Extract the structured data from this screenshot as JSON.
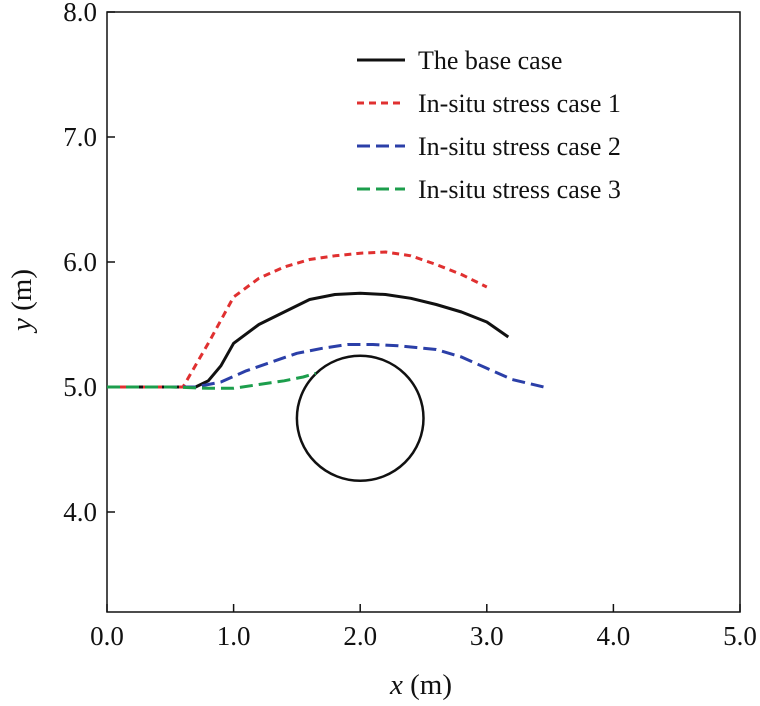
{
  "chart_data": {
    "type": "line",
    "title": "",
    "xlabel": {
      "var": "x",
      "unit": " (m)"
    },
    "ylabel": {
      "var": "y",
      "unit": " (m)"
    },
    "xlim": [
      0,
      5
    ],
    "ylim": [
      3.2,
      8.0
    ],
    "x_ticks": [
      {
        "value": 0,
        "label": "0.0"
      },
      {
        "value": 1,
        "label": "1.0"
      },
      {
        "value": 2,
        "label": "2.0"
      },
      {
        "value": 3,
        "label": "3.0"
      },
      {
        "value": 4,
        "label": "4.0"
      },
      {
        "value": 5,
        "label": "5.0"
      }
    ],
    "y_ticks": [
      {
        "value": 4,
        "label": "4.0"
      },
      {
        "value": 5,
        "label": "5.0"
      },
      {
        "value": 6,
        "label": "6.0"
      },
      {
        "value": 7,
        "label": "7.0"
      },
      {
        "value": 8,
        "label": "8.0"
      }
    ],
    "grid": false,
    "legend_position": "top-right",
    "series": [
      {
        "name": "The base case",
        "color": "#111111",
        "dash": "solid",
        "points": [
          [
            0,
            5.0
          ],
          [
            0.5,
            5.0
          ],
          [
            0.7,
            5.0
          ],
          [
            0.8,
            5.05
          ],
          [
            0.9,
            5.17
          ],
          [
            1.0,
            5.35
          ],
          [
            1.2,
            5.5
          ],
          [
            1.4,
            5.6
          ],
          [
            1.6,
            5.7
          ],
          [
            1.8,
            5.74
          ],
          [
            2.0,
            5.75
          ],
          [
            2.2,
            5.74
          ],
          [
            2.4,
            5.71
          ],
          [
            2.6,
            5.66
          ],
          [
            2.8,
            5.6
          ],
          [
            3.0,
            5.52
          ],
          [
            3.17,
            5.4
          ]
        ]
      },
      {
        "name": "In-situ stress case 1",
        "color": "#e03030",
        "dash": "short-dash",
        "points": [
          [
            0,
            5.0
          ],
          [
            0.6,
            5.0
          ],
          [
            0.8,
            5.35
          ],
          [
            1.0,
            5.72
          ],
          [
            1.2,
            5.87
          ],
          [
            1.4,
            5.96
          ],
          [
            1.6,
            6.02
          ],
          [
            1.8,
            6.05
          ],
          [
            2.0,
            6.07
          ],
          [
            2.2,
            6.08
          ],
          [
            2.4,
            6.05
          ],
          [
            2.6,
            5.98
          ],
          [
            2.8,
            5.9
          ],
          [
            3.0,
            5.8
          ]
        ]
      },
      {
        "name": "In-situ stress case 2",
        "color": "#2b3fa8",
        "dash": "long-dash",
        "points": [
          [
            0,
            5.0
          ],
          [
            0.7,
            5.0
          ],
          [
            0.9,
            5.04
          ],
          [
            1.1,
            5.13
          ],
          [
            1.3,
            5.2
          ],
          [
            1.5,
            5.27
          ],
          [
            1.7,
            5.31
          ],
          [
            1.9,
            5.34
          ],
          [
            2.1,
            5.34
          ],
          [
            2.3,
            5.33
          ],
          [
            2.6,
            5.3
          ],
          [
            2.8,
            5.24
          ],
          [
            3.0,
            5.15
          ],
          [
            3.2,
            5.06
          ],
          [
            3.45,
            5.0
          ]
        ]
      },
      {
        "name": "In-situ stress case 3",
        "color": "#1c9e4c",
        "dash": "long-dash",
        "points": [
          [
            0,
            5.0
          ],
          [
            0.5,
            5.0
          ],
          [
            0.8,
            4.99
          ],
          [
            1.0,
            4.99
          ],
          [
            1.2,
            5.02
          ],
          [
            1.4,
            5.05
          ],
          [
            1.55,
            5.08
          ],
          [
            1.65,
            5.11
          ]
        ]
      }
    ],
    "annotations": [
      {
        "type": "circle",
        "center": [
          2.0,
          4.75
        ],
        "radius": 0.5,
        "color": "#111111"
      }
    ]
  }
}
